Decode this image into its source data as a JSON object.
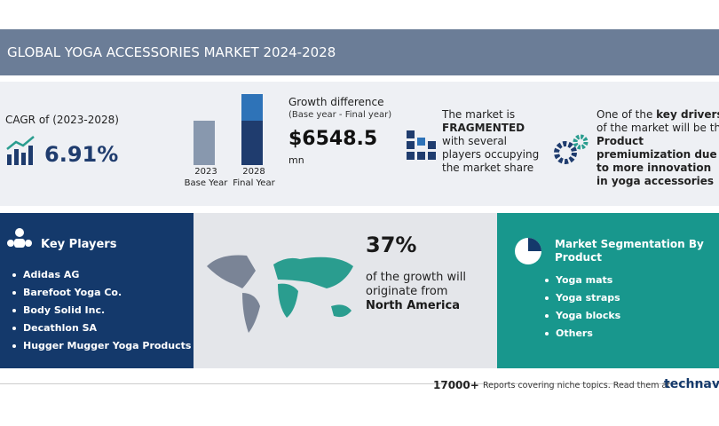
{
  "header": {
    "title": "GLOBAL YOGA ACCESSORIES MARKET 2024-2028"
  },
  "cagr": {
    "label": "CAGR of (2023-2028)",
    "value": "6.91%"
  },
  "growth": {
    "bars": [
      {
        "year": "2023",
        "label": "Base Year"
      },
      {
        "year": "2028",
        "label": "Final Year"
      }
    ],
    "title": "Growth difference",
    "subtitle": "(Base year - Final year)",
    "value": "$6548.5",
    "unit": "mn"
  },
  "market": {
    "lines": [
      "The market is",
      "FRAGMENTED",
      "with several",
      "players occupying",
      "the market share"
    ]
  },
  "drivers": {
    "lead": "One of the ",
    "bold_lead": "key drivers",
    "middle": "of the market will be the",
    "bold_lines": [
      "Product",
      "premiumization due",
      "to more innovation",
      "in yoga accessories"
    ]
  },
  "key_players": {
    "title": "Key Players",
    "items": [
      "Adidas AG",
      "Barefoot Yoga Co.",
      "Body Solid Inc.",
      "Decathlon SA",
      "Hugger Mugger Yoga Products LLC"
    ]
  },
  "region": {
    "share": "37%",
    "text_lines": [
      "of the growth will",
      "originate from"
    ],
    "name": "North America"
  },
  "segmentation": {
    "title_lines": [
      "Market Segmentation By",
      "Product"
    ],
    "items": [
      "Yoga mats",
      "Yoga straps",
      "Yoga blocks",
      "Others"
    ]
  },
  "footer": {
    "count": "17000+",
    "text": "Reports covering niche topics. Read them at",
    "brand": "technavio"
  }
}
